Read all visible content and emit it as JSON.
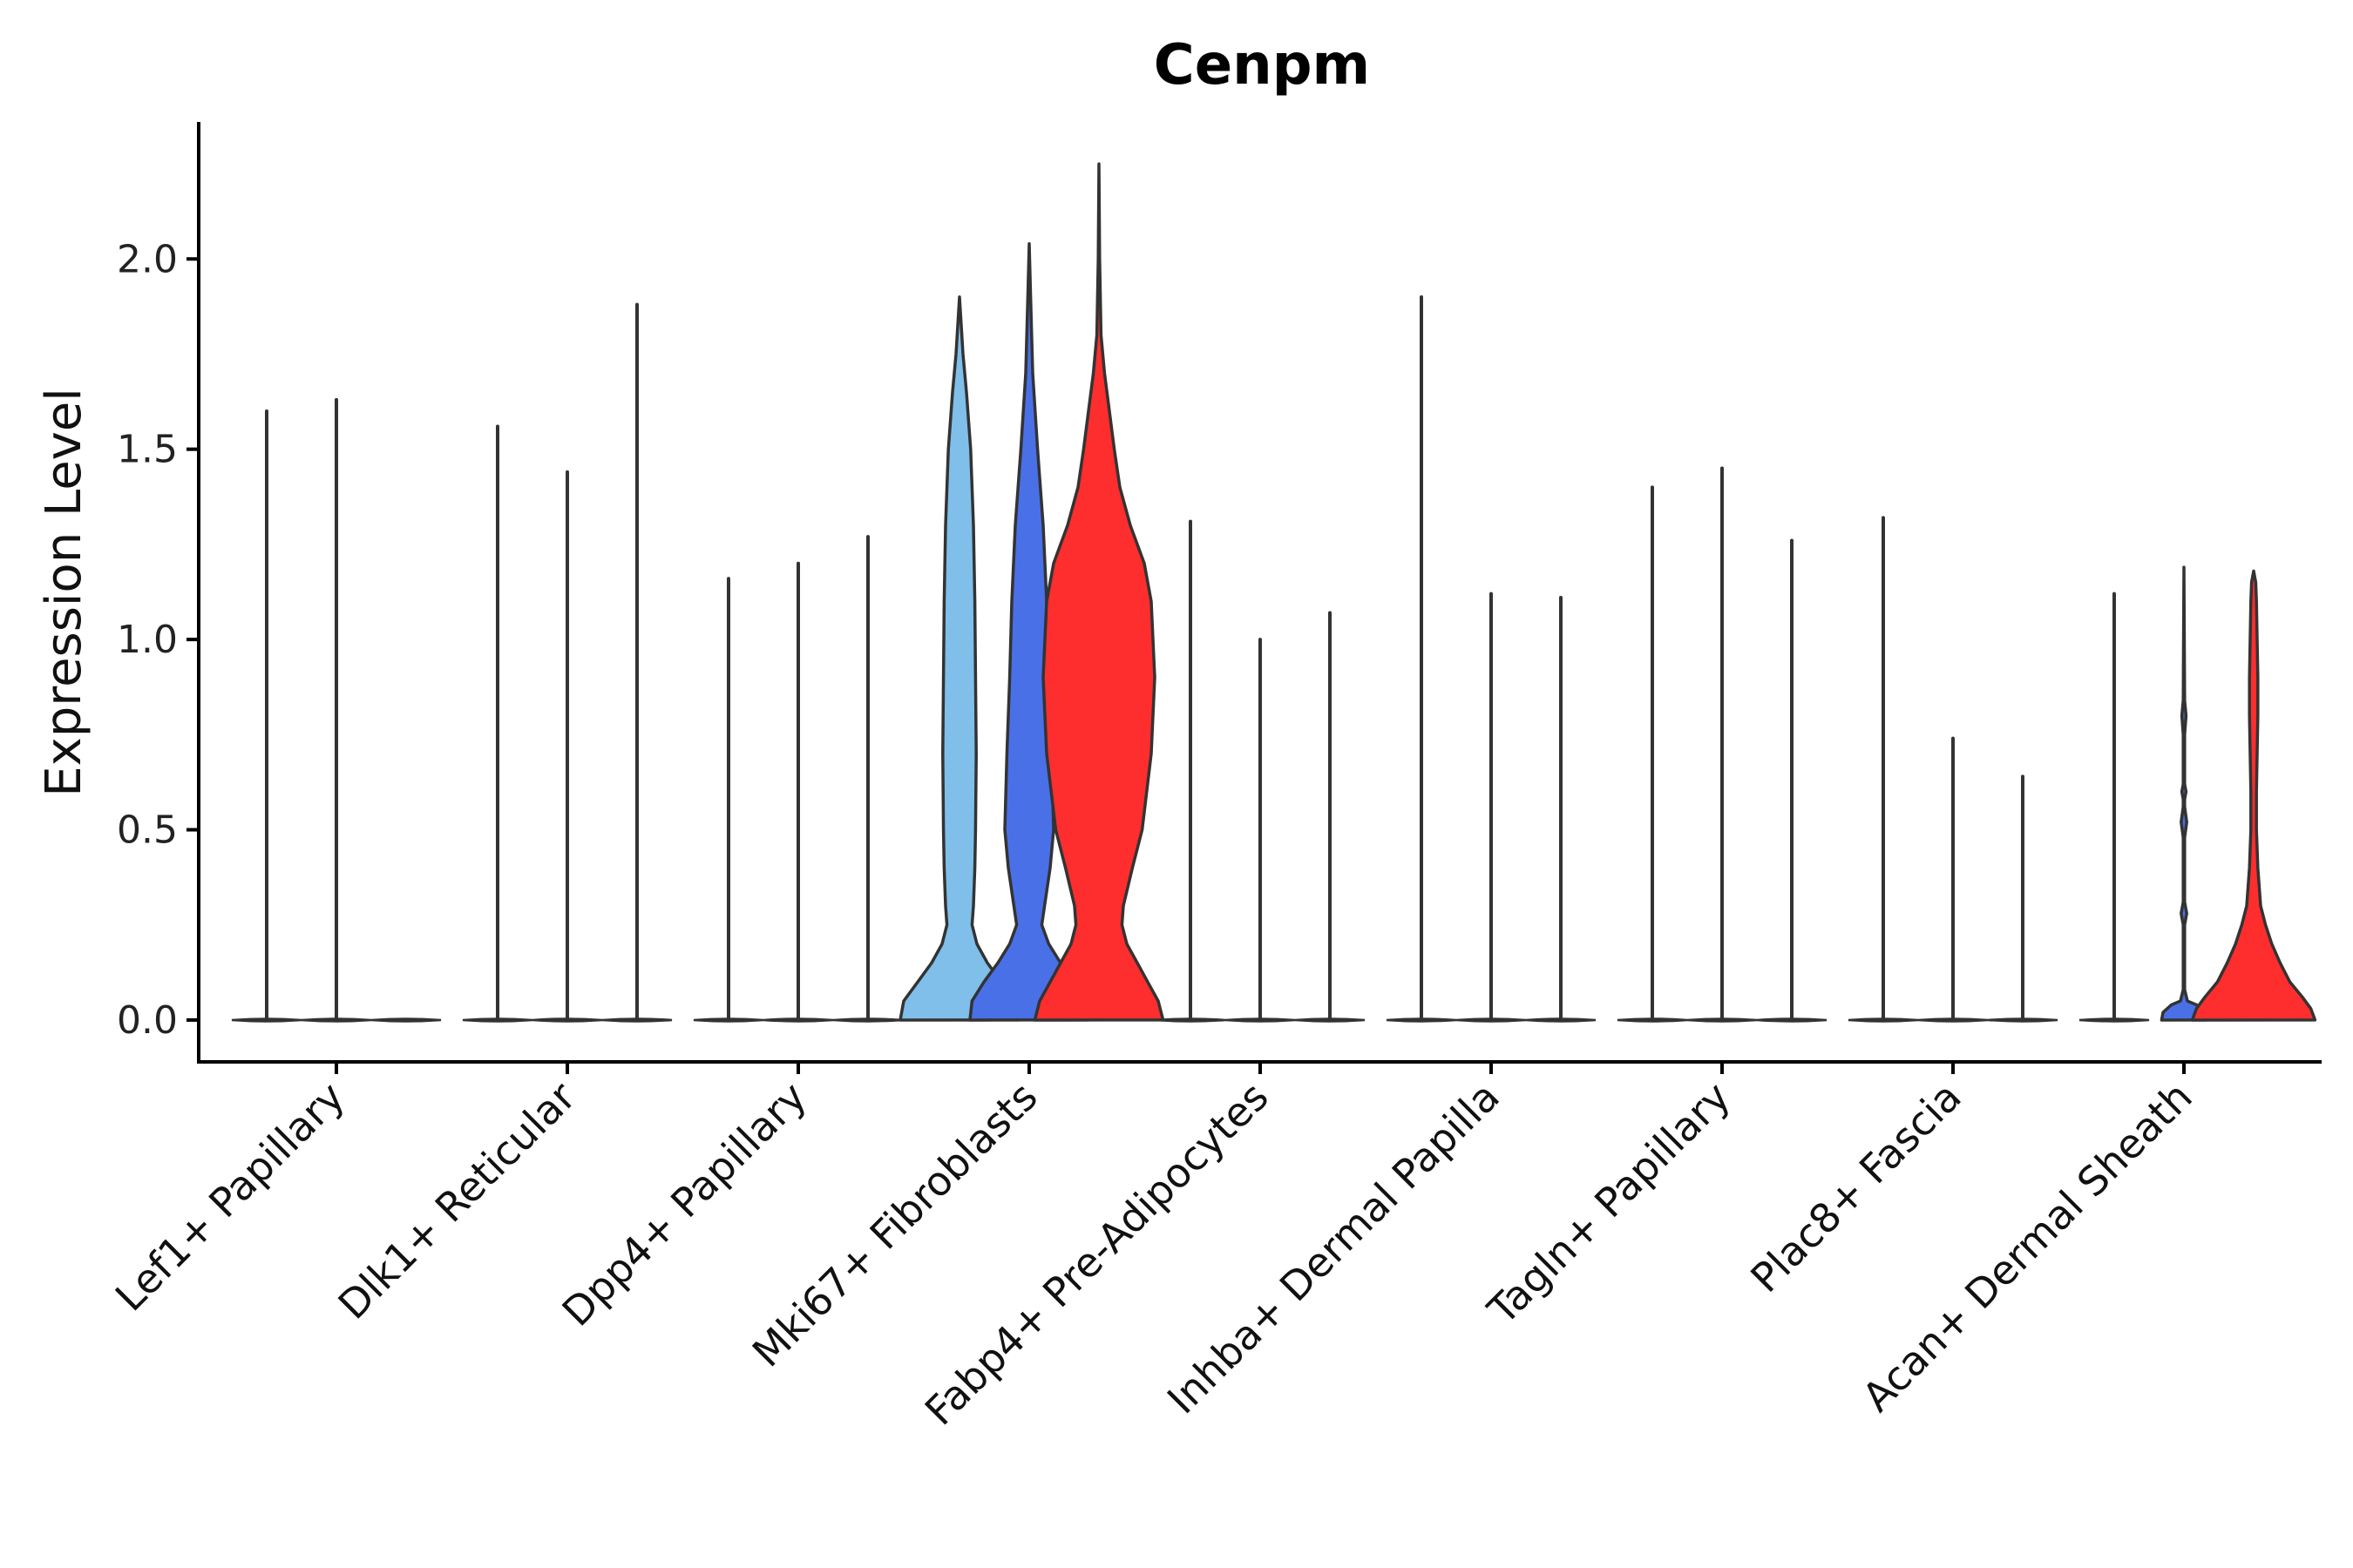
{
  "chart_data": {
    "type": "violin",
    "title": "Cenpm",
    "xlabel": "",
    "ylabel": "Expression Level",
    "ylim": [
      -0.11,
      2.36
    ],
    "yticks": [
      0.0,
      0.5,
      1.0,
      1.5,
      2.0
    ],
    "ytick_labels": [
      "0.0",
      "0.5",
      "1.0",
      "1.5",
      "2.0"
    ],
    "grid": false,
    "legend": "none",
    "colors": {
      "light_blue": "#7fbfea",
      "blue": "#4a70e8",
      "red": "#ff2e2e",
      "outline": "#333333"
    },
    "groups": [
      {
        "category": "Lef1+ Papillary",
        "violins": [
          {
            "max": 1.6,
            "color": "#ffffff",
            "profile": []
          },
          {
            "max": 1.63,
            "color": "#ffffff",
            "profile": []
          },
          {
            "max": 0.0,
            "color": "#ffffff",
            "profile": []
          }
        ]
      },
      {
        "category": "Dlk1+ Reticular",
        "violins": [
          {
            "max": 1.56,
            "color": "#ffffff",
            "profile": []
          },
          {
            "max": 1.44,
            "color": "#ffffff",
            "profile": []
          },
          {
            "max": 1.88,
            "color": "#ffffff",
            "profile": []
          }
        ]
      },
      {
        "category": "Dpp4+ Papillary",
        "violins": [
          {
            "max": 1.16,
            "color": "#ffffff",
            "profile": []
          },
          {
            "max": 1.2,
            "color": "#ffffff",
            "profile": []
          },
          {
            "max": 1.27,
            "color": "#ffffff",
            "profile": []
          }
        ]
      },
      {
        "category": "Mki67+ Fibroblasts",
        "violins": [
          {
            "max": 1.9,
            "color": "#7fbfea",
            "profile": [
              [
                0.0,
                0.85
              ],
              [
                0.05,
                0.8
              ],
              [
                0.1,
                0.6
              ],
              [
                0.15,
                0.4
              ],
              [
                0.2,
                0.25
              ],
              [
                0.25,
                0.18
              ],
              [
                0.3,
                0.2
              ],
              [
                0.4,
                0.22
              ],
              [
                0.5,
                0.23
              ],
              [
                0.7,
                0.24
              ],
              [
                0.9,
                0.23
              ],
              [
                1.1,
                0.22
              ],
              [
                1.3,
                0.2
              ],
              [
                1.5,
                0.16
              ],
              [
                1.65,
                0.1
              ],
              [
                1.75,
                0.05
              ],
              [
                1.9,
                0.0
              ]
            ]
          },
          {
            "max": 2.04,
            "color": "#4a70e8",
            "profile": [
              [
                0.0,
                0.85
              ],
              [
                0.05,
                0.82
              ],
              [
                0.1,
                0.65
              ],
              [
                0.15,
                0.45
              ],
              [
                0.2,
                0.28
              ],
              [
                0.25,
                0.18
              ],
              [
                0.3,
                0.22
              ],
              [
                0.4,
                0.3
              ],
              [
                0.5,
                0.35
              ],
              [
                0.7,
                0.32
              ],
              [
                0.9,
                0.28
              ],
              [
                1.1,
                0.25
              ],
              [
                1.3,
                0.2
              ],
              [
                1.5,
                0.12
              ],
              [
                1.7,
                0.05
              ],
              [
                1.9,
                0.02
              ],
              [
                2.04,
                0.0
              ]
            ]
          },
          {
            "max": 2.25,
            "color": "#ff2e2e",
            "profile": [
              [
                0.0,
                0.92
              ],
              [
                0.05,
                0.85
              ],
              [
                0.1,
                0.7
              ],
              [
                0.15,
                0.55
              ],
              [
                0.2,
                0.4
              ],
              [
                0.25,
                0.33
              ],
              [
                0.3,
                0.35
              ],
              [
                0.4,
                0.48
              ],
              [
                0.5,
                0.62
              ],
              [
                0.7,
                0.75
              ],
              [
                0.9,
                0.8
              ],
              [
                1.1,
                0.75
              ],
              [
                1.2,
                0.65
              ],
              [
                1.3,
                0.45
              ],
              [
                1.4,
                0.3
              ],
              [
                1.5,
                0.22
              ],
              [
                1.6,
                0.15
              ],
              [
                1.7,
                0.08
              ],
              [
                1.8,
                0.03
              ],
              [
                2.0,
                0.01
              ],
              [
                2.25,
                0.0
              ]
            ]
          }
        ]
      },
      {
        "category": "Fabp4+ Pre-Adipocytes",
        "violins": [
          {
            "max": 1.31,
            "color": "#ffffff",
            "profile": []
          },
          {
            "max": 1.0,
            "color": "#ffffff",
            "profile": []
          },
          {
            "max": 1.07,
            "color": "#ffffff",
            "profile": []
          }
        ]
      },
      {
        "category": "Inhba+ Dermal Papilla",
        "violins": [
          {
            "max": 1.9,
            "color": "#ffffff",
            "profile": []
          },
          {
            "max": 1.12,
            "color": "#ffffff",
            "profile": []
          },
          {
            "max": 1.11,
            "color": "#ffffff",
            "profile": []
          }
        ]
      },
      {
        "category": "Tagln+ Papillary",
        "violins": [
          {
            "max": 1.4,
            "color": "#ffffff",
            "profile": []
          },
          {
            "max": 1.45,
            "color": "#ffffff",
            "profile": []
          },
          {
            "max": 1.26,
            "color": "#ffffff",
            "profile": []
          }
        ]
      },
      {
        "category": "Plac8+ Fascia",
        "violins": [
          {
            "max": 1.32,
            "color": "#ffffff",
            "profile": []
          },
          {
            "max": 0.74,
            "color": "#ffffff",
            "profile": []
          },
          {
            "max": 0.64,
            "color": "#ffffff",
            "profile": []
          }
        ]
      },
      {
        "category": "Acan+ Dermal Sheath",
        "violins": [
          {
            "max": 1.12,
            "color": "#ffffff",
            "profile": []
          },
          {
            "max": 1.19,
            "color": "#4a70e8",
            "profile": [
              [
                0.0,
                0.32
              ],
              [
                0.02,
                0.3
              ],
              [
                0.04,
                0.18
              ],
              [
                0.05,
                0.05
              ],
              [
                0.08,
                0.01
              ],
              [
                0.25,
                0.01
              ],
              [
                0.28,
                0.04
              ],
              [
                0.31,
                0.01
              ],
              [
                0.48,
                0.01
              ],
              [
                0.52,
                0.04
              ],
              [
                0.56,
                0.01
              ],
              [
                0.58,
                0.01
              ],
              [
                0.6,
                0.03
              ],
              [
                0.62,
                0.01
              ],
              [
                0.75,
                0.01
              ],
              [
                0.8,
                0.03
              ],
              [
                0.84,
                0.01
              ],
              [
                1.19,
                0.0
              ]
            ]
          },
          {
            "max": 1.18,
            "color": "#ff2e2e",
            "profile": [
              [
                0.0,
                0.88
              ],
              [
                0.03,
                0.82
              ],
              [
                0.06,
                0.7
              ],
              [
                0.1,
                0.52
              ],
              [
                0.15,
                0.38
              ],
              [
                0.2,
                0.26
              ],
              [
                0.25,
                0.17
              ],
              [
                0.3,
                0.1
              ],
              [
                0.4,
                0.06
              ],
              [
                0.5,
                0.04
              ],
              [
                0.6,
                0.04
              ],
              [
                0.7,
                0.05
              ],
              [
                0.8,
                0.06
              ],
              [
                0.9,
                0.06
              ],
              [
                1.0,
                0.05
              ],
              [
                1.1,
                0.04
              ],
              [
                1.15,
                0.03
              ],
              [
                1.18,
                0.0
              ]
            ]
          }
        ]
      }
    ]
  }
}
